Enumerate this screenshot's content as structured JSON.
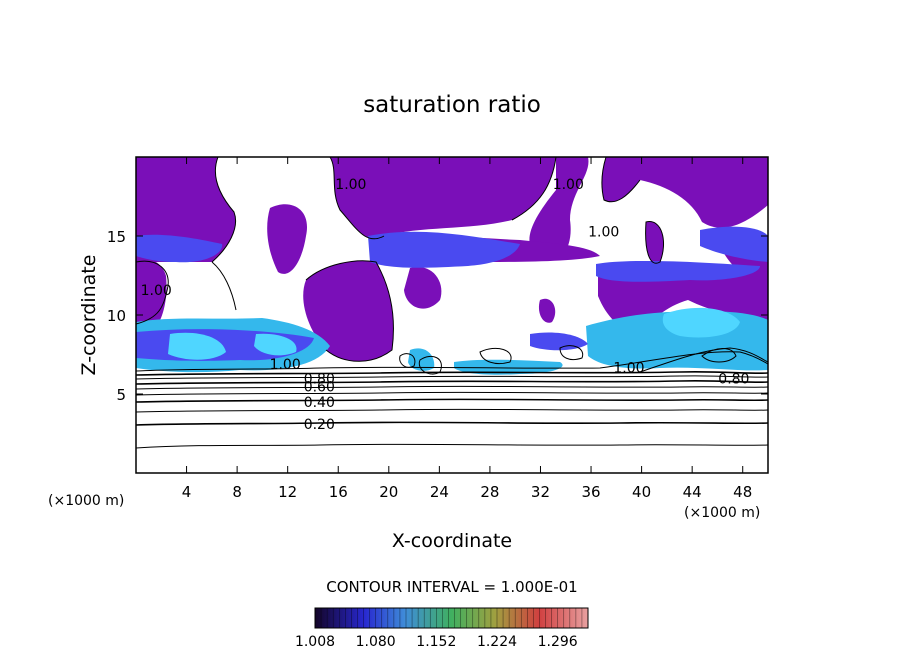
{
  "chart_data": {
    "type": "heatmap",
    "title": "saturation ratio",
    "xlabel": "X-coordinate",
    "ylabel": "Z-coordinate",
    "x_unit_label": "(×1000 m)",
    "x_unit_label_right": "(×1000 m)",
    "xlim": [
      0,
      50
    ],
    "ylim": [
      0,
      20
    ],
    "x_ticks": [
      {
        "value": 4,
        "label": "4"
      },
      {
        "value": 8,
        "label": "8"
      },
      {
        "value": 12,
        "label": "12"
      },
      {
        "value": 16,
        "label": "16"
      },
      {
        "value": 20,
        "label": "20"
      },
      {
        "value": 24,
        "label": "24"
      },
      {
        "value": 28,
        "label": "28"
      },
      {
        "value": 32,
        "label": "32"
      },
      {
        "value": 36,
        "label": "36"
      },
      {
        "value": 40,
        "label": "40"
      },
      {
        "value": 44,
        "label": "44"
      },
      {
        "value": 48,
        "label": "48"
      }
    ],
    "y_ticks": [
      {
        "value": 5,
        "label": "5"
      },
      {
        "value": 10,
        "label": "10"
      },
      {
        "value": 15,
        "label": "15"
      }
    ],
    "contour_interval_text": "CONTOUR INTERVAL = 1.000E-01",
    "contour_labels": [
      {
        "text": "0.20",
        "x": 14.5,
        "z": 2.9
      },
      {
        "text": "0.40",
        "x": 14.5,
        "z": 4.3
      },
      {
        "text": "0.60",
        "x": 14.5,
        "z": 5.3
      },
      {
        "text": "0.80",
        "x": 14.5,
        "z": 5.8
      },
      {
        "text": "0.80",
        "x": 47.3,
        "z": 5.8
      },
      {
        "text": "1.00",
        "x": 17.0,
        "z": 18.1
      },
      {
        "text": "1.00",
        "x": 34.2,
        "z": 18.1
      },
      {
        "text": "1.00",
        "x": 37.0,
        "z": 15.1
      },
      {
        "text": "1.00",
        "x": 1.6,
        "z": 11.4
      },
      {
        "text": "1.00",
        "x": 11.8,
        "z": 6.7
      },
      {
        "text": "1.00",
        "x": 39.0,
        "z": 6.5
      }
    ],
    "colorbar": {
      "min": 1.008,
      "max": 1.332,
      "tick_labels": [
        "1.008",
        "1.080",
        "1.152",
        "1.224",
        "1.296"
      ]
    },
    "colors": {
      "base": "#7a0fb8",
      "blue": "#4a4af0",
      "light_blue": "#4fd6ff",
      "cyan": "#34b8ec"
    }
  }
}
